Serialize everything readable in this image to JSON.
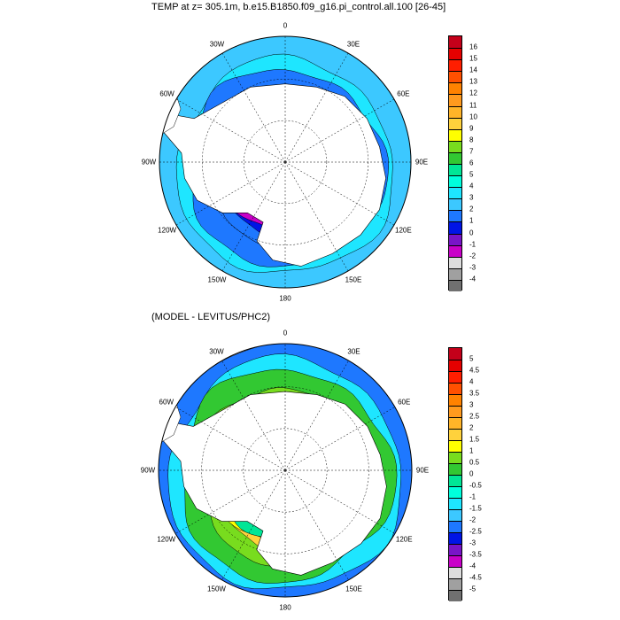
{
  "panels": [
    {
      "id": "top",
      "title": "TEMP at z= 305.1m, b.e15.B1850.f09_g16.pi_control.all.100 [26-45]",
      "lon_labels": [
        "0",
        "30E",
        "60E",
        "90E",
        "120E",
        "150E",
        "180",
        "150W",
        "120W",
        "90W",
        "60W",
        "30W"
      ],
      "colorbar": {
        "levels": [
          "16",
          "15",
          "14",
          "13",
          "12",
          "11",
          "10",
          "9",
          "8",
          "7",
          "6",
          "5",
          "4",
          "3",
          "2",
          "1",
          "0",
          "-1",
          "-2",
          "-3",
          "-4"
        ],
        "colors": [
          "#c4001a",
          "#e50000",
          "#ff1e00",
          "#ff5000",
          "#ff8200",
          "#ff9a1e",
          "#ffb428",
          "#ffd23c",
          "#ffff00",
          "#78dc1e",
          "#32c832",
          "#00e696",
          "#00ffdc",
          "#1ee6ff",
          "#3cc8ff",
          "#1e78ff",
          "#0014e6",
          "#7814c8",
          "#c800c8",
          "#dcdcdc",
          "#a0a0a0",
          "#707070"
        ]
      }
    },
    {
      "id": "bottom",
      "title": "(MODEL - LEVITUS/PHC2)",
      "lon_labels": [
        "0",
        "30E",
        "60E",
        "90E",
        "120E",
        "150E",
        "180",
        "150W",
        "120W",
        "90W",
        "60W",
        "30W"
      ],
      "colorbar": {
        "levels": [
          "5",
          "4.5",
          "4",
          "3.5",
          "3",
          "2.5",
          "2",
          "1.5",
          "1",
          "0.5",
          "0",
          "-0.5",
          "-1",
          "-1.5",
          "-2",
          "-2.5",
          "-3",
          "-3.5",
          "-4",
          "-4.5",
          "-5"
        ],
        "colors": [
          "#c4001a",
          "#e50000",
          "#ff1e00",
          "#ff5000",
          "#ff8200",
          "#ff9a1e",
          "#ffb428",
          "#ffd23c",
          "#ffff00",
          "#78dc1e",
          "#32c832",
          "#00e696",
          "#00ffdc",
          "#1ee6ff",
          "#3cc8ff",
          "#1e78ff",
          "#0014e6",
          "#7814c8",
          "#c800c8",
          "#dcdcdc",
          "#a0a0a0",
          "#707070"
        ]
      }
    }
  ],
  "map_colors": {
    "land": "#ffffff",
    "top_rings": [
      "#3cc8ff",
      "#1ee6ff",
      "#1e78ff",
      "#1e78ff",
      "#0014e6",
      "#c800c8"
    ],
    "bottom_rings": [
      "#1e78ff",
      "#1ee6ff",
      "#32c832",
      "#78dc1e",
      "#ffd23c",
      "#ffff00",
      "#00e696"
    ]
  }
}
